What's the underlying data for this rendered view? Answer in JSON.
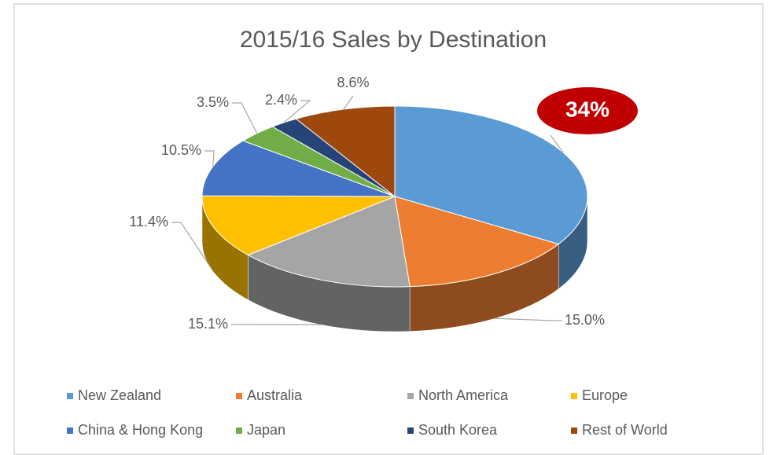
{
  "chart_data": {
    "type": "pie",
    "title": "2015/16 Sales by Destination",
    "categories": [
      "New Zealand",
      "Australia",
      "North America",
      "Europe",
      "China & Hong Kong",
      "Japan",
      "South Korea",
      "Rest of World"
    ],
    "values": [
      34,
      15,
      15.1,
      11.4,
      10.5,
      3.5,
      2.4,
      8.6
    ],
    "value_labels": [
      "34%",
      "15.0%",
      "15.1%",
      "11.4%",
      "10.5%",
      "3.5%",
      "2.4%",
      "8.6%"
    ],
    "colors": [
      "#5b9bd5",
      "#ed7d31",
      "#a5a5a5",
      "#ffc000",
      "#4472c4",
      "#70ad47",
      "#264478",
      "#9e480e"
    ],
    "legend": "bottom"
  }
}
